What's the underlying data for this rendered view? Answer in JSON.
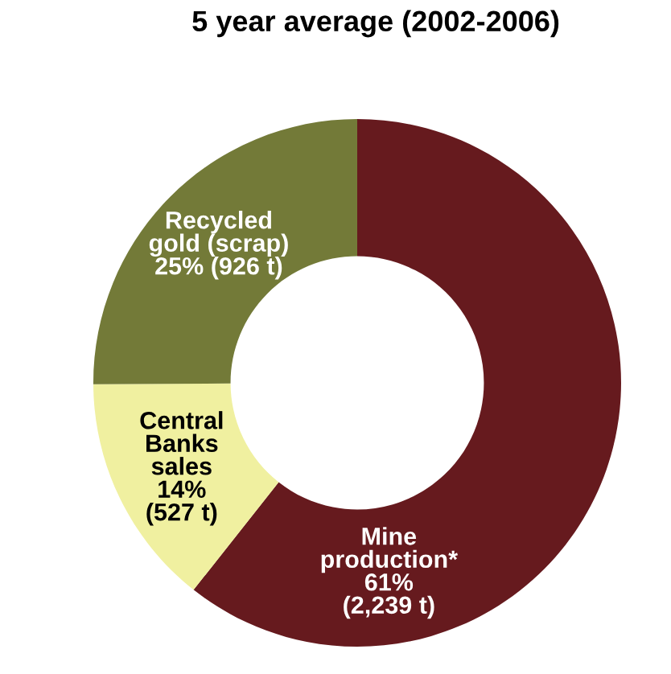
{
  "chart_data": {
    "type": "donut",
    "title": "5 year average (2002-2006)",
    "categories": [
      "Mine\nproduction*",
      "Central\nBanks\nsales",
      "Recycled\ngold (scrap)"
    ],
    "values": [
      2239,
      527,
      926
    ],
    "value_labels": [
      "61%\n(2,239 t)",
      "14%\n(527 t)",
      "25% (926 t)"
    ],
    "colors": [
      "#661a1e",
      "#f0f0a0",
      "#737a38"
    ]
  }
}
